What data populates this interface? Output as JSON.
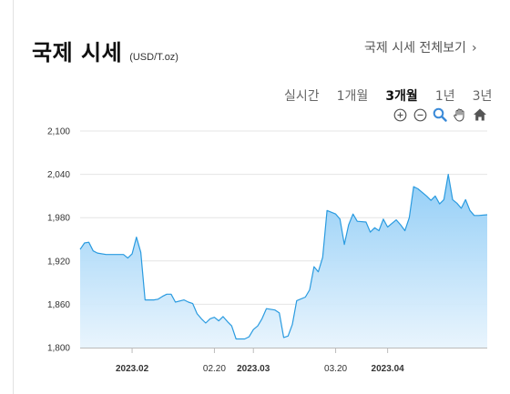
{
  "header": {
    "title": "국제 시세",
    "unit": "(USD/T.oz)",
    "more_link": "국제 시세 전체보기",
    "more_chevron": "›"
  },
  "periods": [
    {
      "label": "실시간",
      "active": false
    },
    {
      "label": "1개월",
      "active": false
    },
    {
      "label": "3개월",
      "active": true
    },
    {
      "label": "1년",
      "active": false
    },
    {
      "label": "3년",
      "active": false
    }
  ],
  "tools": [
    "zoom-in-icon",
    "zoom-out-icon",
    "magnify-icon",
    "pan-hand-icon",
    "home-icon"
  ],
  "colors": {
    "line": "#2a9be0",
    "fill_top": "#8ccbf6",
    "fill_bottom": "#e8f4fd",
    "grid": "#e4e4e4",
    "tool_blue": "#3a8ad8"
  },
  "chart_data": {
    "type": "area",
    "ylim": [
      1800,
      2100
    ],
    "yticks": [
      "1,800",
      "1,860",
      "1,920",
      "1,980",
      "2,040",
      "2,100"
    ],
    "ytick_values": [
      1800,
      1860,
      1920,
      1980,
      2040,
      2100
    ],
    "xticks": [
      {
        "label": "2023.02",
        "date": "2023-02-01",
        "bold": true
      },
      {
        "label": "02.20",
        "date": "2023-02-20",
        "bold": false
      },
      {
        "label": "2023.03",
        "date": "2023-03-01",
        "bold": true
      },
      {
        "label": "03.20",
        "date": "2023-03-20",
        "bold": false
      },
      {
        "label": "2023.04",
        "date": "2023-04-01",
        "bold": true
      }
    ],
    "x_start": "2023-01-20",
    "x_end": "2023-04-24",
    "series": [
      {
        "points": [
          [
            "2023-01-20",
            1936
          ],
          [
            "2023-01-21",
            1945
          ],
          [
            "2023-01-22",
            1946
          ],
          [
            "2023-01-23",
            1934
          ],
          [
            "2023-01-24",
            1931
          ],
          [
            "2023-01-26",
            1929
          ],
          [
            "2023-01-30",
            1929
          ],
          [
            "2023-01-31",
            1924
          ],
          [
            "2023-02-01",
            1930
          ],
          [
            "2023-02-02",
            1953
          ],
          [
            "2023-02-03",
            1932
          ],
          [
            "2023-02-04",
            1866
          ],
          [
            "2023-02-06",
            1866
          ],
          [
            "2023-02-07",
            1867
          ],
          [
            "2023-02-08",
            1871
          ],
          [
            "2023-02-09",
            1874
          ],
          [
            "2023-02-10",
            1874
          ],
          [
            "2023-02-11",
            1863
          ],
          [
            "2023-02-13",
            1866
          ],
          [
            "2023-02-14",
            1863
          ],
          [
            "2023-02-15",
            1861
          ],
          [
            "2023-02-16",
            1847
          ],
          [
            "2023-02-17",
            1840
          ],
          [
            "2023-02-18",
            1834
          ],
          [
            "2023-02-19",
            1840
          ],
          [
            "2023-02-20",
            1842
          ],
          [
            "2023-02-21",
            1837
          ],
          [
            "2023-02-22",
            1843
          ],
          [
            "2023-02-23",
            1836
          ],
          [
            "2023-02-24",
            1830
          ],
          [
            "2023-02-25",
            1812
          ],
          [
            "2023-02-27",
            1812
          ],
          [
            "2023-02-28",
            1815
          ],
          [
            "2023-03-01",
            1825
          ],
          [
            "2023-03-02",
            1830
          ],
          [
            "2023-03-03",
            1840
          ],
          [
            "2023-03-04",
            1854
          ],
          [
            "2023-03-06",
            1852
          ],
          [
            "2023-03-07",
            1848
          ],
          [
            "2023-03-08",
            1814
          ],
          [
            "2023-03-09",
            1816
          ],
          [
            "2023-03-10",
            1832
          ],
          [
            "2023-03-11",
            1865
          ],
          [
            "2023-03-13",
            1870
          ],
          [
            "2023-03-14",
            1880
          ],
          [
            "2023-03-15",
            1912
          ],
          [
            "2023-03-16",
            1905
          ],
          [
            "2023-03-17",
            1925
          ],
          [
            "2023-03-18",
            1990
          ],
          [
            "2023-03-20",
            1985
          ],
          [
            "2023-03-21",
            1978
          ],
          [
            "2023-03-22",
            1943
          ],
          [
            "2023-03-23",
            1970
          ],
          [
            "2023-03-24",
            1985
          ],
          [
            "2023-03-25",
            1975
          ],
          [
            "2023-03-27",
            1974
          ],
          [
            "2023-03-28",
            1960
          ],
          [
            "2023-03-29",
            1966
          ],
          [
            "2023-03-30",
            1962
          ],
          [
            "2023-03-31",
            1978
          ],
          [
            "2023-04-01",
            1967
          ],
          [
            "2023-04-03",
            1977
          ],
          [
            "2023-04-04",
            1970
          ],
          [
            "2023-04-05",
            1962
          ],
          [
            "2023-04-06",
            1980
          ],
          [
            "2023-04-07",
            2023
          ],
          [
            "2023-04-08",
            2020
          ],
          [
            "2023-04-10",
            2010
          ],
          [
            "2023-04-11",
            2004
          ],
          [
            "2023-04-12",
            2010
          ],
          [
            "2023-04-13",
            1999
          ],
          [
            "2023-04-14",
            2005
          ],
          [
            "2023-04-15",
            2040
          ],
          [
            "2023-04-16",
            2005
          ],
          [
            "2023-04-17",
            2000
          ],
          [
            "2023-04-18",
            1993
          ],
          [
            "2023-04-19",
            2005
          ],
          [
            "2023-04-20",
            1990
          ],
          [
            "2023-04-21",
            1983
          ],
          [
            "2023-04-22",
            1983
          ],
          [
            "2023-04-24",
            1984
          ]
        ]
      }
    ]
  }
}
